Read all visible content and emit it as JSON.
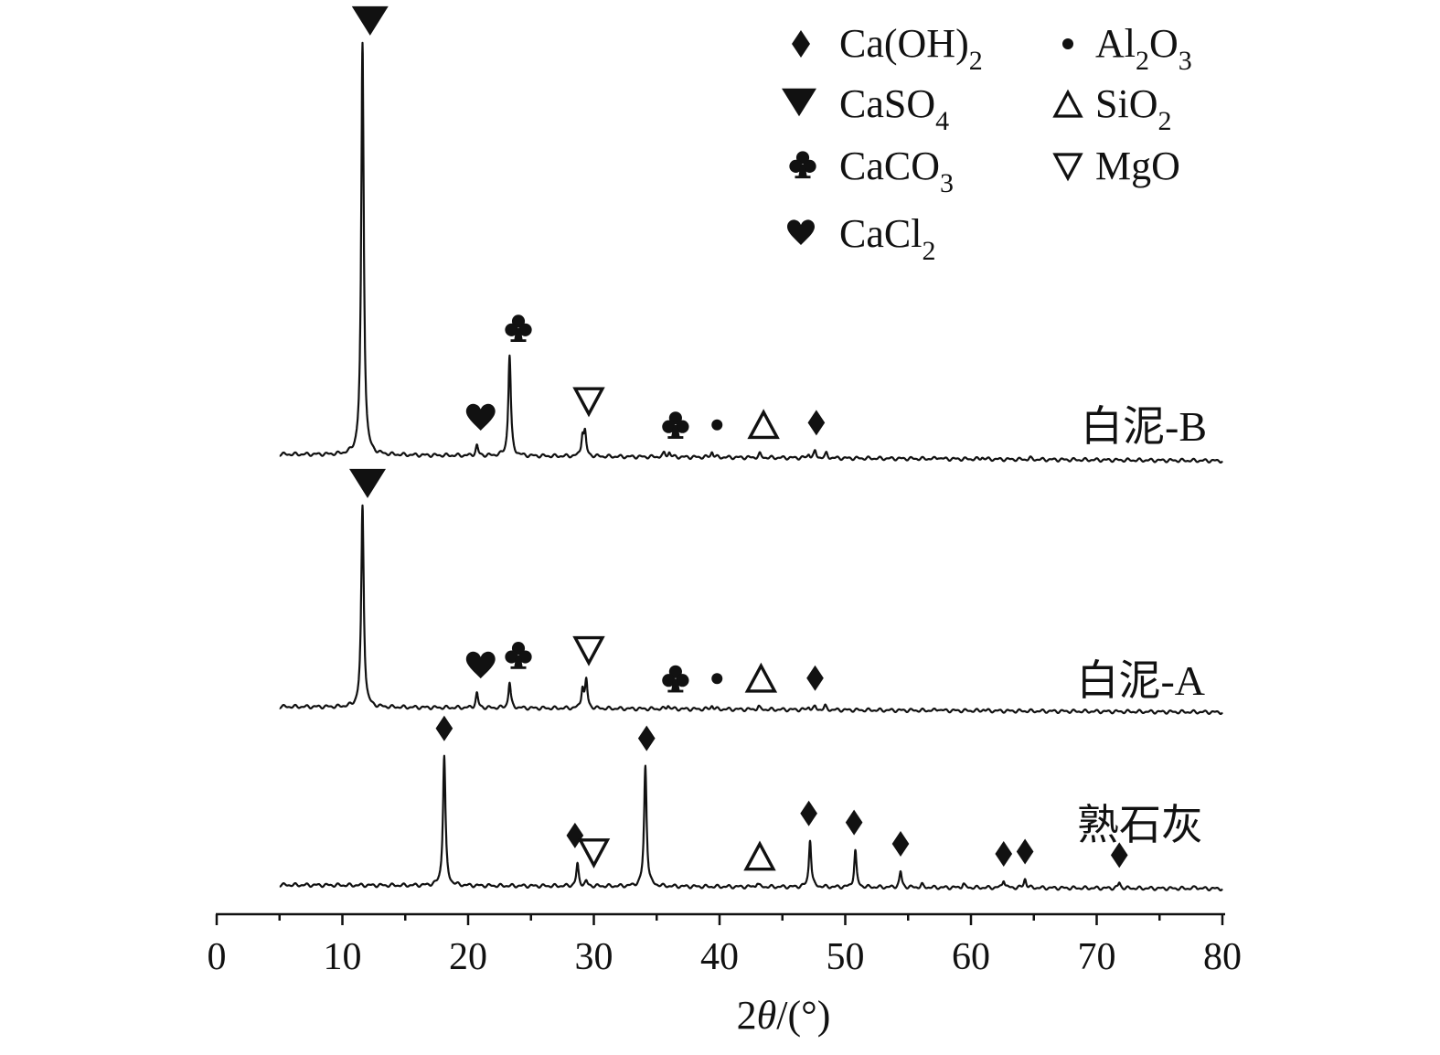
{
  "chart_data": {
    "type": "line",
    "xlabel_prefix": "2",
    "xlabel_theta": "θ",
    "xlabel_suffix": "/(°)",
    "xlim": [
      0,
      80
    ],
    "xticks": [
      "0",
      "10",
      "20",
      "30",
      "40",
      "50",
      "60",
      "70",
      "80"
    ],
    "xtick_values": [
      0,
      10,
      20,
      30,
      40,
      50,
      60,
      70,
      80
    ],
    "grid": false,
    "legend_position": "top-right",
    "legend": [
      {
        "marker": "diamond",
        "base": "Ca(OH)",
        "sub": "2"
      },
      {
        "marker": "triangle-down-filled",
        "base": "CaSO",
        "sub": "4"
      },
      {
        "marker": "club",
        "base": "CaCO",
        "sub": "3"
      },
      {
        "marker": "heart",
        "base": "CaCl",
        "sub": "2"
      },
      {
        "marker": "dot",
        "parts": [
          [
            "Al",
            ""
          ],
          [
            "2",
            "sub"
          ],
          [
            "O",
            ""
          ],
          [
            "3",
            "sub"
          ]
        ]
      },
      {
        "marker": "triangle-up-open",
        "base": "SiO",
        "sub": "2"
      },
      {
        "marker": "triangle-down-open",
        "base": "MgO",
        "sub": ""
      }
    ],
    "series": [
      {
        "name": "白泥-B",
        "baseline_range": [
          0,
          6
        ],
        "peaks": [
          [
            11.6,
            450
          ],
          [
            20.7,
            11
          ],
          [
            23.3,
            110
          ],
          [
            29.1,
            22
          ],
          [
            29.3,
            24
          ],
          [
            35.6,
            4
          ],
          [
            36.0,
            5
          ],
          [
            39.4,
            6
          ],
          [
            43.2,
            4
          ],
          [
            47.1,
            4
          ],
          [
            47.6,
            7
          ],
          [
            48.5,
            5
          ],
          [
            57.4,
            2
          ],
          [
            60.9,
            2
          ],
          [
            64.7,
            1.5
          ]
        ],
        "markers": [
          {
            "symbol": "triangle-down-filled",
            "x": 12.2
          },
          {
            "symbol": "heart",
            "x": 21.0
          },
          {
            "symbol": "club",
            "x": 24.0
          },
          {
            "symbol": "triangle-down-open",
            "x": 29.6
          },
          {
            "symbol": "club",
            "x": 36.5
          },
          {
            "symbol": "dot",
            "x": 39.8
          },
          {
            "symbol": "triangle-up-open",
            "x": 43.5
          },
          {
            "symbol": "diamond",
            "x": 47.7
          }
        ]
      },
      {
        "name": "白泥-A",
        "baseline_range": [
          0,
          6
        ],
        "peaks": [
          [
            11.6,
            220
          ],
          [
            20.7,
            16
          ],
          [
            23.3,
            28
          ],
          [
            29.1,
            22
          ],
          [
            29.4,
            30
          ],
          [
            35.9,
            4
          ],
          [
            39.4,
            4
          ],
          [
            43.1,
            3
          ],
          [
            47.1,
            3
          ],
          [
            47.6,
            3
          ],
          [
            48.4,
            4
          ],
          [
            57.4,
            2
          ],
          [
            61.0,
            1.5
          ]
        ],
        "markers": [
          {
            "symbol": "triangle-down-filled",
            "x": 12.0
          },
          {
            "symbol": "heart",
            "x": 21.0
          },
          {
            "symbol": "club",
            "x": 24.0
          },
          {
            "symbol": "triangle-down-open",
            "x": 29.6
          },
          {
            "symbol": "club",
            "x": 36.5
          },
          {
            "symbol": "dot",
            "x": 39.8
          },
          {
            "symbol": "triangle-up-open",
            "x": 43.3
          },
          {
            "symbol": "diamond",
            "x": 47.6
          }
        ]
      },
      {
        "name": "熟石灰",
        "baseline_range": [
          0,
          6
        ],
        "peaks": [
          [
            18.1,
            142
          ],
          [
            28.7,
            24
          ],
          [
            29.4,
            5
          ],
          [
            34.1,
            132
          ],
          [
            43.0,
            4
          ],
          [
            47.2,
            52
          ],
          [
            50.8,
            40
          ],
          [
            54.4,
            17
          ],
          [
            56.1,
            3
          ],
          [
            59.4,
            4
          ],
          [
            62.6,
            9
          ],
          [
            64.3,
            10
          ],
          [
            71.8,
            6
          ],
          [
            77.9,
            2
          ]
        ],
        "markers": [
          {
            "symbol": "diamond",
            "x": 18.1
          },
          {
            "symbol": "diamond",
            "x": 28.5
          },
          {
            "symbol": "triangle-down-open",
            "x": 30.0
          },
          {
            "symbol": "diamond",
            "x": 34.2
          },
          {
            "symbol": "triangle-up-open",
            "x": 43.2
          },
          {
            "symbol": "diamond",
            "x": 47.1
          },
          {
            "symbol": "diamond",
            "x": 50.7
          },
          {
            "symbol": "diamond",
            "x": 54.4
          },
          {
            "symbol": "diamond",
            "x": 62.6
          },
          {
            "symbol": "diamond",
            "x": 64.3
          },
          {
            "symbol": "diamond",
            "x": 71.8
          }
        ]
      }
    ]
  }
}
